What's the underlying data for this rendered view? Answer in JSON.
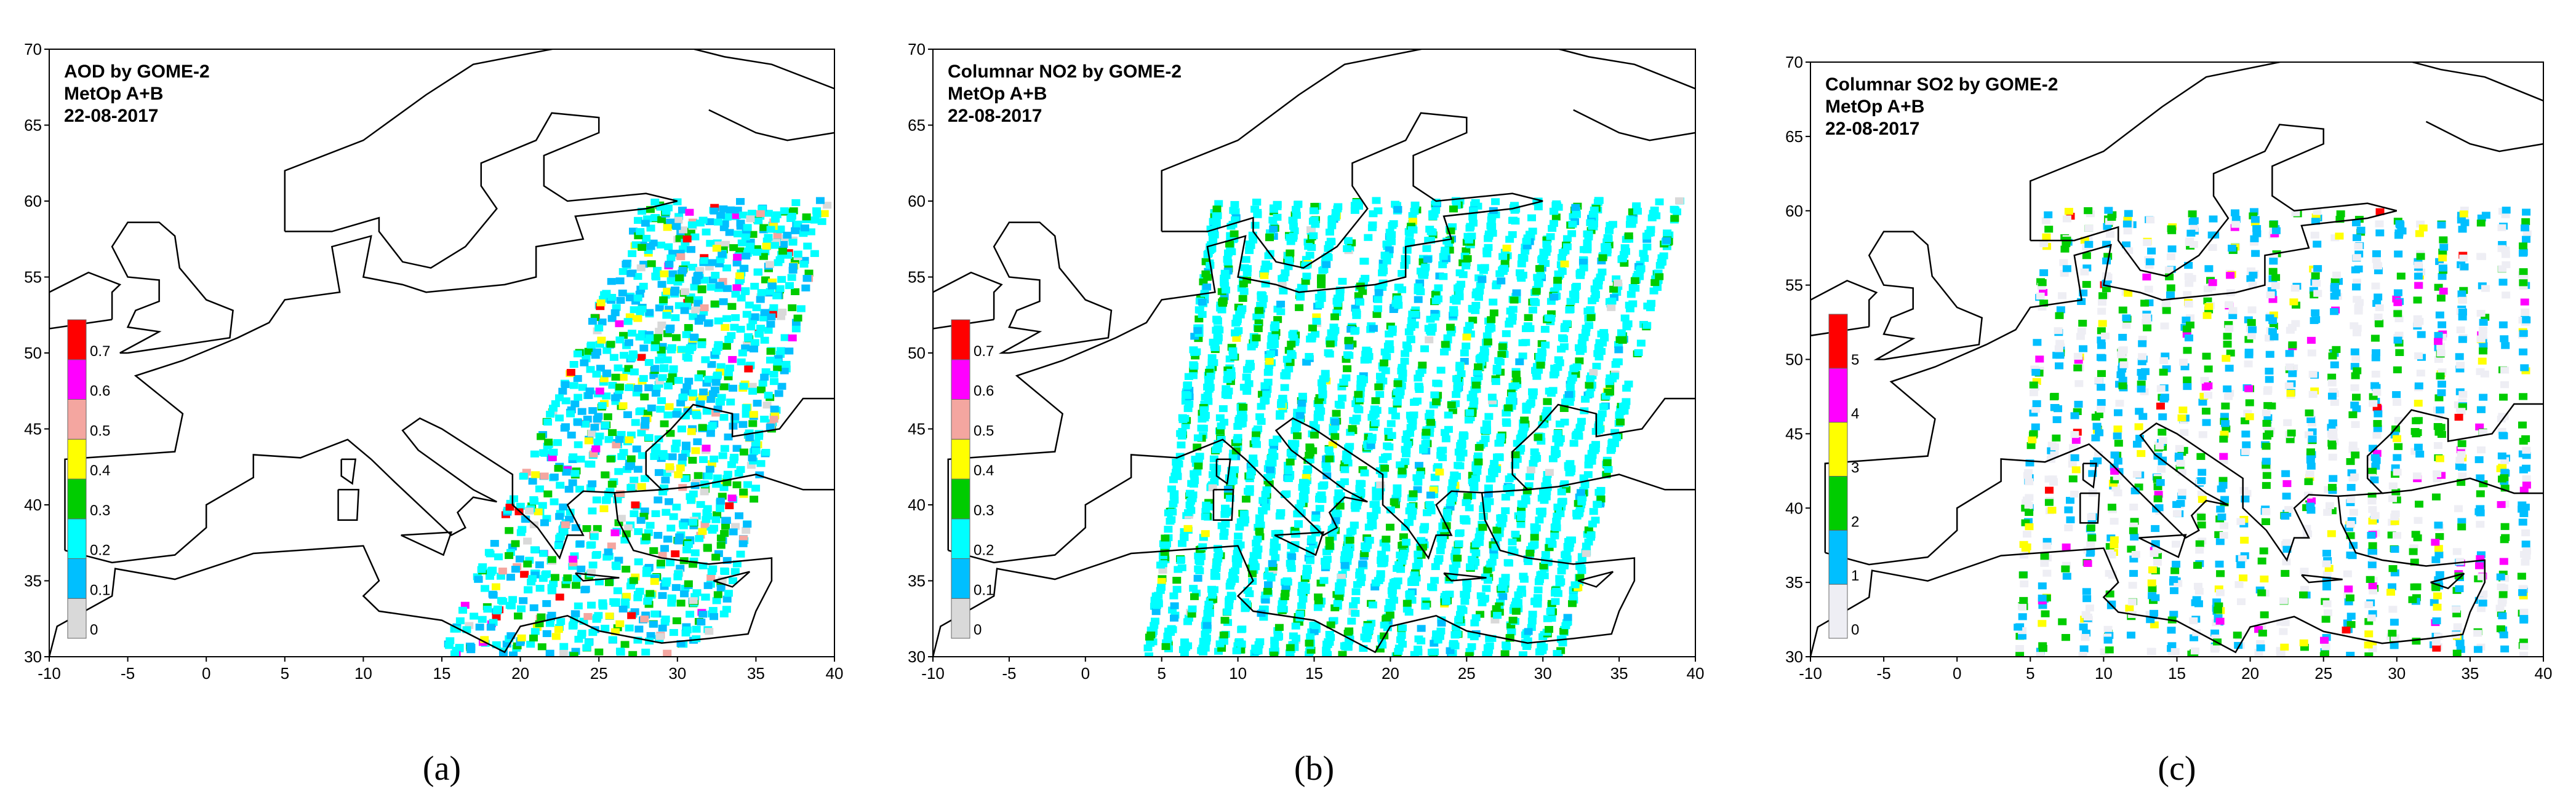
{
  "panels": [
    {
      "title_lines": [
        "AOD by GOME-2",
        "MetOp A+B",
        "22-08-2017"
      ],
      "xlim": [
        -10,
        40
      ],
      "ylim": [
        30,
        70
      ],
      "xticks": [
        -10,
        -5,
        0,
        5,
        10,
        15,
        20,
        25,
        30,
        35,
        40
      ],
      "yticks": [
        30,
        35,
        40,
        45,
        50,
        55,
        60,
        65,
        70
      ],
      "colorbar": {
        "labels": [
          "0",
          "0.1",
          "0.2",
          "0.3",
          "0.4",
          "0.5",
          "0.6",
          "0.7"
        ],
        "colors": [
          "#d9d9d9",
          "#00bfff",
          "#00ffff",
          "#00cc00",
          "#ffff00",
          "#f4a6a0",
          "#ff00ff",
          "#ff0000"
        ]
      },
      "caption": "(a)"
    },
    {
      "title_lines": [
        "Columnar NO2 by GOME-2",
        "MetOp A+B",
        "22-08-2017"
      ],
      "xlim": [
        -10,
        40
      ],
      "ylim": [
        30,
        70
      ],
      "xticks": [
        -10,
        -5,
        0,
        5,
        10,
        15,
        20,
        25,
        30,
        35,
        40
      ],
      "yticks": [
        30,
        35,
        40,
        45,
        50,
        55,
        60,
        65,
        70
      ],
      "colorbar": {
        "labels": [
          "0",
          "0.1",
          "0.2",
          "0.3",
          "0.4",
          "0.5",
          "0.6",
          "0.7"
        ],
        "colors": [
          "#d9d9d9",
          "#00bfff",
          "#00ffff",
          "#00cc00",
          "#ffff00",
          "#f4a6a0",
          "#ff00ff",
          "#ff0000"
        ]
      },
      "caption": "(b)"
    },
    {
      "title_lines": [
        "Columnar SO2 by GOME-2",
        "MetOp A+B",
        "22-08-2017"
      ],
      "xlim": [
        -10,
        40
      ],
      "ylim": [
        30,
        70
      ],
      "xticks": [
        -10,
        -5,
        0,
        5,
        10,
        15,
        20,
        25,
        30,
        35,
        40
      ],
      "yticks": [
        30,
        35,
        40,
        45,
        50,
        55,
        60,
        65,
        70
      ],
      "colorbar": {
        "labels": [
          "0",
          "1",
          "2",
          "3",
          "4",
          "5"
        ],
        "colors": [
          "#eeeef4",
          "#00bfff",
          "#00cc00",
          "#ffff00",
          "#ff00ff",
          "#ff0000"
        ]
      },
      "caption": "(c)"
    }
  ]
}
